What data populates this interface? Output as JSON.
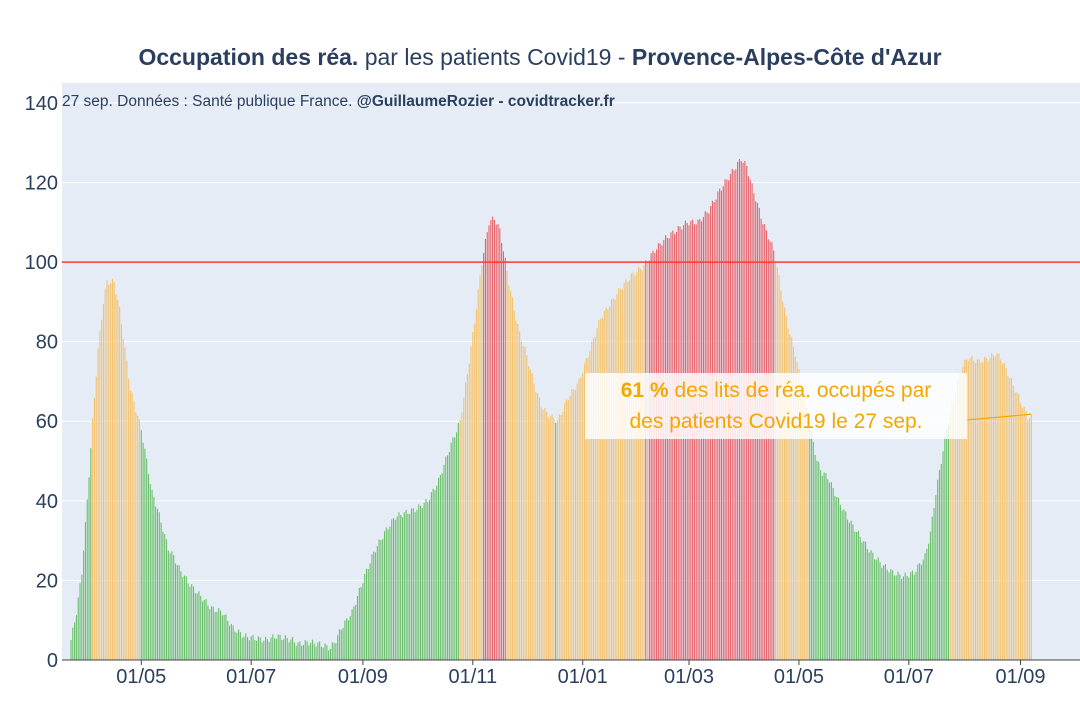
{
  "title": {
    "part1_bold": "Occupation des réa.",
    "part2": " par les patients Covid19 - ",
    "part3_bold": "Provence-Alpes-Côte d'Azur"
  },
  "subtitle": {
    "text": "27 sep. Données : Santé publique France. ",
    "bold": "@GuillaumeRozier - covidtracker.fr"
  },
  "annotation": {
    "value_bold": "61 %",
    "line1_rest": " des lits de réa. occupés par",
    "line2": "des patients Covid19 le 27 sep."
  },
  "colors": {
    "green": "#6cbf6c",
    "orange": "#f3c26f",
    "red": "#e9636b",
    "threshold": "#ff3b30",
    "plot_bg": "#e5ecf6",
    "annotation_text": "#f5a700",
    "title_text": "#2a3f5f"
  },
  "chart_data": {
    "type": "bar",
    "title": "Occupation des réa. par les patients Covid19 - Provence-Alpes-Côte d'Azur",
    "xlabel": "",
    "ylabel": "",
    "ylim": [
      0,
      145
    ],
    "yticks": [
      0,
      20,
      40,
      60,
      80,
      100,
      120,
      140
    ],
    "threshold": 100,
    "color_rule": "value <= 60 ? green : (value <= 100 ? orange : red)",
    "xticks": [
      {
        "label": "01/05",
        "day": 39
      },
      {
        "label": "01/07",
        "day": 100
      },
      {
        "label": "01/09",
        "day": 162
      },
      {
        "label": "01/11",
        "day": 223
      },
      {
        "label": "01/01",
        "day": 284
      },
      {
        "label": "01/03",
        "day": 343
      },
      {
        "label": "01/05",
        "day": 404
      },
      {
        "label": "01/07",
        "day": 465
      },
      {
        "label": "01/09",
        "day": 527
      }
    ],
    "x_range_days": [
      -5,
      560
    ],
    "start_date": "2020-03-23",
    "end_date": "2021-09-27",
    "keyframes": [
      [
        0,
        5
      ],
      [
        3,
        12
      ],
      [
        6,
        22
      ],
      [
        9,
        40
      ],
      [
        12,
        60
      ],
      [
        15,
        78
      ],
      [
        18,
        90
      ],
      [
        20,
        95
      ],
      [
        24,
        95
      ],
      [
        27,
        88
      ],
      [
        30,
        78
      ],
      [
        33,
        68
      ],
      [
        36,
        63
      ],
      [
        39,
        58
      ],
      [
        42,
        50
      ],
      [
        45,
        42
      ],
      [
        48,
        38
      ],
      [
        51,
        33
      ],
      [
        54,
        28
      ],
      [
        57,
        26
      ],
      [
        60,
        23
      ],
      [
        66,
        19
      ],
      [
        72,
        16
      ],
      [
        78,
        13
      ],
      [
        84,
        12
      ],
      [
        90,
        8
      ],
      [
        96,
        6
      ],
      [
        108,
        5
      ],
      [
        114,
        6
      ],
      [
        123,
        5
      ],
      [
        126,
        4
      ],
      [
        132,
        4.5
      ],
      [
        138,
        4
      ],
      [
        144,
        3
      ],
      [
        147,
        5
      ],
      [
        150,
        8
      ],
      [
        156,
        12
      ],
      [
        162,
        20
      ],
      [
        168,
        27
      ],
      [
        174,
        32
      ],
      [
        180,
        36
      ],
      [
        186,
        37
      ],
      [
        192,
        38
      ],
      [
        198,
        40
      ],
      [
        204,
        45
      ],
      [
        210,
        53
      ],
      [
        216,
        60
      ],
      [
        220,
        72
      ],
      [
        224,
        85
      ],
      [
        228,
        100
      ],
      [
        232,
        110
      ],
      [
        235,
        111
      ],
      [
        238,
        108
      ],
      [
        240,
        103
      ],
      [
        243,
        95
      ],
      [
        246,
        88
      ],
      [
        249,
        82
      ],
      [
        252,
        78
      ],
      [
        255,
        73
      ],
      [
        258,
        68
      ],
      [
        261,
        64
      ],
      [
        264,
        62
      ],
      [
        267,
        61
      ],
      [
        270,
        60
      ],
      [
        276,
        66
      ],
      [
        282,
        70
      ],
      [
        288,
        78
      ],
      [
        294,
        86
      ],
      [
        300,
        90
      ],
      [
        306,
        94
      ],
      [
        312,
        97
      ],
      [
        318,
        99
      ],
      [
        324,
        103
      ],
      [
        330,
        106
      ],
      [
        336,
        108
      ],
      [
        342,
        110
      ],
      [
        348,
        110
      ],
      [
        354,
        113
      ],
      [
        360,
        118
      ],
      [
        366,
        122
      ],
      [
        372,
        126
      ],
      [
        375,
        124
      ],
      [
        378,
        119
      ],
      [
        384,
        110
      ],
      [
        390,
        103
      ],
      [
        393,
        96
      ],
      [
        396,
        88
      ],
      [
        399,
        82
      ],
      [
        402,
        77
      ],
      [
        405,
        70
      ],
      [
        408,
        63
      ],
      [
        411,
        57
      ],
      [
        414,
        50
      ],
      [
        417,
        47
      ],
      [
        420,
        46
      ],
      [
        426,
        40
      ],
      [
        432,
        35
      ],
      [
        438,
        31
      ],
      [
        444,
        27
      ],
      [
        450,
        24
      ],
      [
        456,
        22
      ],
      [
        462,
        21
      ],
      [
        468,
        22
      ],
      [
        474,
        26
      ],
      [
        477,
        32
      ],
      [
        480,
        42
      ],
      [
        483,
        50
      ],
      [
        486,
        58
      ],
      [
        489,
        64
      ],
      [
        492,
        70
      ],
      [
        495,
        74
      ],
      [
        498,
        76
      ],
      [
        504,
        75
      ],
      [
        510,
        76
      ],
      [
        513,
        77
      ],
      [
        516,
        76
      ],
      [
        519,
        73
      ],
      [
        522,
        70
      ],
      [
        525,
        67
      ],
      [
        528,
        64
      ],
      [
        531,
        61
      ],
      [
        533,
        61
      ]
    ]
  }
}
